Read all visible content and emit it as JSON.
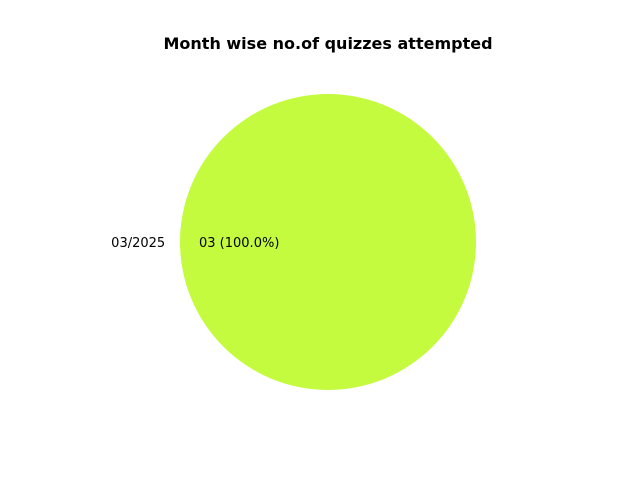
{
  "chart_data": {
    "type": "pie",
    "title": "Month wise no.of quizzes attempted",
    "slices": [
      {
        "label": "03/2025",
        "value": 3,
        "value_label": "03 (100.0%)",
        "color": "#c5fb3f"
      }
    ]
  }
}
